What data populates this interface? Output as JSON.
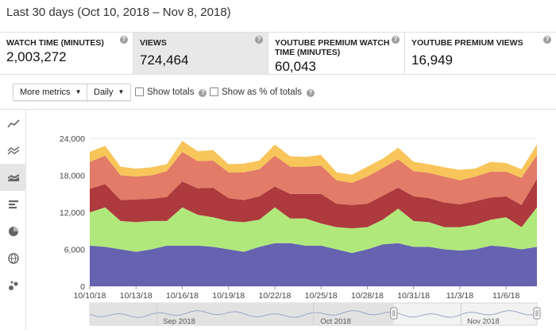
{
  "header": {
    "title": "Last 30 days (Oct 10, 2018 – Nov 8, 2018)"
  },
  "metrics": [
    {
      "label": "WATCH TIME (MINUTES)",
      "value": "2,003,272",
      "active": false
    },
    {
      "label": "VIEWS",
      "value": "724,464",
      "active": true
    },
    {
      "label": "YOUTUBE PREMIUM WATCH TIME (MINUTES)",
      "value": "60,043",
      "active": false
    },
    {
      "label": "YOUTUBE PREMIUM VIEWS",
      "value": "16,949",
      "active": false
    }
  ],
  "toolbar": {
    "more_metrics": "More metrics",
    "daily": "Daily",
    "show_totals": "Show totals",
    "show_pct": "Show as % of totals"
  },
  "sidebar": {
    "icons": [
      "line-chart-icon",
      "multi-line-chart-icon",
      "stacked-area-chart-icon",
      "bar-chart-icon",
      "pie-chart-icon",
      "map-globe-icon",
      "bubble-chart-icon"
    ],
    "active_index": 2
  },
  "chart_data": {
    "type": "area",
    "stacked": true,
    "x": [
      "10/10/18",
      "10/11/18",
      "10/12/18",
      "10/13/18",
      "10/14/18",
      "10/15/18",
      "10/16/18",
      "10/17/18",
      "10/18/18",
      "10/19/18",
      "10/20/18",
      "10/21/18",
      "10/22/18",
      "10/23/18",
      "10/24/18",
      "10/25/18",
      "10/26/18",
      "10/27/18",
      "10/28/18",
      "10/29/18",
      "10/30/18",
      "10/31/18",
      "11/1/18",
      "11/2/18",
      "11/3/18",
      "11/4/18",
      "11/5/18",
      "11/6/18",
      "11/7/18",
      "11/8/18"
    ],
    "xticks": [
      "10/10/18",
      "10/13/18",
      "10/16/18",
      "10/19/18",
      "10/22/18",
      "10/25/18",
      "10/28/18",
      "10/31/18",
      "11/3/18",
      "11/6/18"
    ],
    "yticks": [
      "0",
      "6,000",
      "12,000",
      "18,000",
      "24,000"
    ],
    "ylim": [
      0,
      24000
    ],
    "colors": [
      "#6563b0",
      "#b1e87c",
      "#ad3a3d",
      "#e27b67",
      "#f8c55a"
    ],
    "series": [
      {
        "values": [
          6600,
          6400,
          6000,
          5600,
          6000,
          6600,
          6600,
          6600,
          6400,
          6000,
          5600,
          6400,
          7000,
          7000,
          6600,
          6600,
          6000,
          5400,
          6000,
          6800,
          7000,
          6400,
          6400,
          6000,
          5800,
          6000,
          6600,
          6400,
          6000,
          6400
        ]
      },
      {
        "values": [
          5400,
          6400,
          4600,
          4800,
          4600,
          4000,
          6200,
          5000,
          4800,
          4600,
          4800,
          4400,
          5800,
          4000,
          4400,
          3600,
          3600,
          4000,
          3600,
          4000,
          5600,
          4200,
          4000,
          3600,
          3800,
          4000,
          4200,
          4800,
          3600,
          6400
        ]
      },
      {
        "values": [
          3800,
          3800,
          3400,
          3700,
          3600,
          3900,
          4200,
          4300,
          4800,
          3700,
          3600,
          3800,
          3400,
          4000,
          4000,
          4800,
          3800,
          3800,
          3800,
          3900,
          3400,
          4000,
          3900,
          4000,
          3700,
          3800,
          3600,
          3400,
          3600,
          4600
        ]
      },
      {
        "values": [
          4400,
          4600,
          4000,
          3700,
          3800,
          4200,
          4800,
          4400,
          4400,
          4200,
          4500,
          4400,
          5000,
          4400,
          4400,
          4600,
          3800,
          3600,
          4400,
          4500,
          4600,
          4100,
          4100,
          4200,
          3900,
          4000,
          4200,
          4000,
          4400,
          3900
        ]
      },
      {
        "values": [
          1600,
          1600,
          1400,
          1300,
          1300,
          1100,
          1800,
          1600,
          1700,
          1300,
          1400,
          1400,
          1800,
          1700,
          1600,
          1700,
          1300,
          1300,
          1600,
          1500,
          1900,
          1500,
          1400,
          1500,
          1700,
          1300,
          1600,
          1400,
          1400,
          1700
        ]
      }
    ],
    "navigator_ticks": [
      "Sep 2018",
      "Oct 2018",
      "Nov 2018"
    ]
  }
}
